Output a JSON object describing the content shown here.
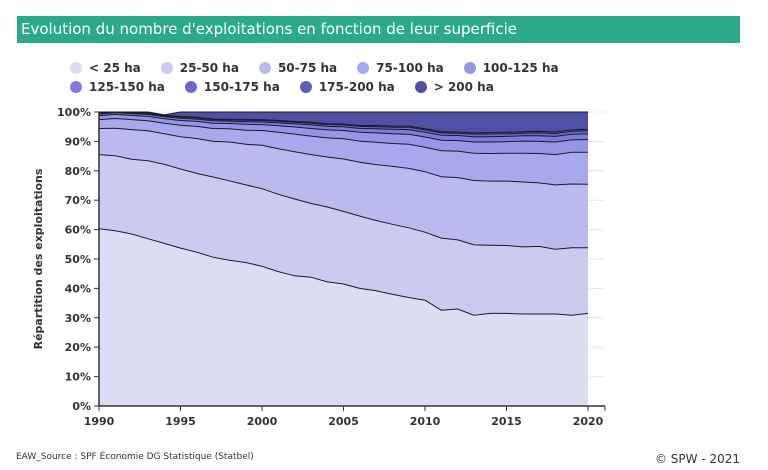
{
  "header": {
    "title": "Evolution du nombre d'exploitations en fonction de leur superficie"
  },
  "footer": {
    "source": "EAW_Source : SPF Économie DG Statistique (Statbel)",
    "copyright": "© SPW - 2021"
  },
  "colors": {
    "title_bg": "#2aaa8a",
    "series": [
      "#dcdcf5",
      "#cbcbf1",
      "#babaee",
      "#a8a8ec",
      "#9696e9",
      "#7d7dd8",
      "#6a6acd",
      "#5d5dbd",
      "#4f4fa4"
    ]
  },
  "chart_data": {
    "type": "area",
    "stacked": "percent",
    "title": "Evolution du nombre d'exploitations en fonction de leur superficie",
    "xlabel": "",
    "ylabel": "Répartition des exploitations",
    "xlim": [
      1990,
      2020
    ],
    "ylim": [
      0,
      100
    ],
    "x_ticks": [
      1990,
      1995,
      2000,
      2005,
      2010,
      2015,
      2020
    ],
    "y_ticks": [
      "0%",
      "10%",
      "20%",
      "30%",
      "40%",
      "50%",
      "60%",
      "70%",
      "80%",
      "90%",
      "100%"
    ],
    "legend_position": "top",
    "x": [
      1990,
      1991,
      1992,
      1993,
      1994,
      1995,
      1996,
      1997,
      1998,
      1999,
      2000,
      2001,
      2002,
      2003,
      2004,
      2005,
      2006,
      2007,
      2008,
      2009,
      2010,
      2011,
      2012,
      2013,
      2014,
      2015,
      2016,
      2017,
      2018,
      2019,
      2020
    ],
    "series": [
      {
        "name": "< 25 ha",
        "values": [
          60.3,
          59.6,
          58.5,
          56.9,
          55.3,
          53.7,
          52.3,
          50.6,
          49.6,
          48.8,
          47.5,
          45.7,
          44.3,
          43.8,
          42.2,
          41.5,
          40.0,
          39.2,
          38.0,
          36.9,
          36.0,
          32.6,
          33.0,
          30.9,
          31.5,
          31.5,
          31.3,
          31.3,
          31.3,
          30.9,
          31.5
        ]
      },
      {
        "name": "25-50 ha",
        "values": [
          25.2,
          25.5,
          25.4,
          26.5,
          26.9,
          26.9,
          26.8,
          27.3,
          27.0,
          26.4,
          26.4,
          26.3,
          26.1,
          25.1,
          25.5,
          24.7,
          24.6,
          23.9,
          23.8,
          23.7,
          23.1,
          24.5,
          23.5,
          23.9,
          23.2,
          23.1,
          22.8,
          23.0,
          22.0,
          22.9,
          22.3
        ]
      },
      {
        "name": "50-75 ha",
        "values": [
          8.9,
          9.4,
          10.1,
          10.2,
          10.4,
          11.0,
          11.9,
          12.1,
          13.2,
          13.8,
          14.8,
          15.5,
          16.1,
          16.6,
          17.0,
          17.8,
          18.3,
          19.0,
          19.7,
          20.2,
          20.6,
          20.9,
          21.2,
          21.9,
          21.8,
          21.9,
          22.1,
          21.6,
          21.9,
          21.7,
          21.6
        ]
      },
      {
        "name": "75-100 ha",
        "values": [
          3.0,
          3.3,
          3.4,
          3.4,
          3.6,
          3.9,
          4.1,
          4.4,
          4.5,
          4.8,
          5.0,
          5.6,
          6.0,
          6.3,
          6.5,
          6.9,
          7.2,
          7.6,
          7.8,
          8.2,
          8.3,
          8.8,
          9.0,
          9.3,
          9.4,
          9.5,
          9.8,
          10.0,
          10.3,
          10.8,
          10.9
        ]
      },
      {
        "name": "100-125 ha",
        "values": [
          1.3,
          1.4,
          1.4,
          1.5,
          1.5,
          1.6,
          1.7,
          1.8,
          1.8,
          2.0,
          2.0,
          2.2,
          2.4,
          2.6,
          2.7,
          2.8,
          3.0,
          3.2,
          3.3,
          3.4,
          3.5,
          3.6,
          3.6,
          3.8,
          3.9,
          3.9,
          4.1,
          4.1,
          4.3,
          4.2,
          4.3
        ]
      },
      {
        "name": "125-150 ha",
        "values": [
          0.6,
          0.6,
          0.6,
          0.7,
          0.7,
          0.8,
          0.8,
          0.8,
          0.8,
          0.9,
          0.9,
          1.0,
          1.1,
          1.2,
          1.2,
          1.3,
          1.3,
          1.4,
          1.5,
          1.6,
          1.6,
          1.7,
          1.7,
          1.8,
          1.8,
          1.8,
          1.8,
          1.9,
          1.9,
          1.9,
          2.0
        ]
      },
      {
        "name": "150-175 ha",
        "values": [
          0.3,
          0.3,
          0.3,
          0.3,
          0.3,
          0.4,
          0.4,
          0.4,
          0.4,
          0.5,
          0.5,
          0.5,
          0.5,
          0.6,
          0.6,
          0.6,
          0.7,
          0.7,
          0.7,
          0.8,
          0.8,
          0.8,
          0.8,
          0.9,
          0.9,
          0.9,
          0.9,
          1.0,
          1.0,
          1.0,
          1.0
        ]
      },
      {
        "name": "175-200 ha",
        "values": [
          0.2,
          0.2,
          0.2,
          0.2,
          0.2,
          0.2,
          0.2,
          0.2,
          0.2,
          0.3,
          0.3,
          0.3,
          0.3,
          0.3,
          0.3,
          0.3,
          0.3,
          0.4,
          0.4,
          0.4,
          0.4,
          0.4,
          0.4,
          0.4,
          0.5,
          0.5,
          0.5,
          0.5,
          0.5,
          0.5,
          0.5
        ]
      },
      {
        "name": "> 200 ha",
        "values": [
          0.2,
          0.2,
          0.1,
          0.3,
          0.1,
          1.5,
          1.8,
          2.4,
          2.5,
          2.6,
          2.6,
          2.9,
          3.2,
          3.5,
          4.0,
          4.1,
          4.6,
          4.6,
          4.8,
          4.8,
          5.7,
          6.7,
          6.8,
          7.1,
          7.0,
          7.9,
          6.7,
          6.6,
          6.8,
          6.1,
          5.9
        ]
      }
    ]
  }
}
